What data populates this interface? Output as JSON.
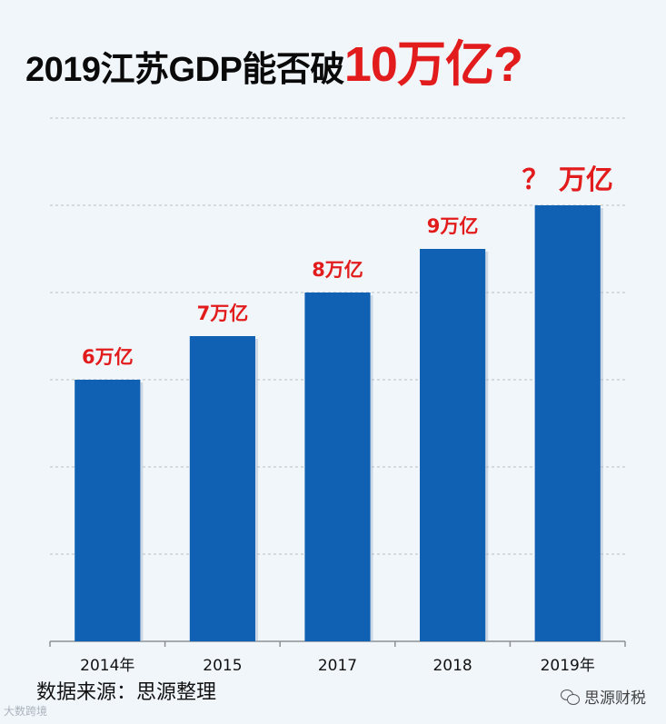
{
  "title": {
    "main": "2019江苏GDP能否破",
    "accent": "10万亿?"
  },
  "source": "数据来源：思源整理",
  "watermark_left": "大数跨境",
  "watermark_right": "思源财税",
  "colors": {
    "bar": "#1060b4",
    "label": "#e21c1c",
    "grid": "#b8bec6",
    "axis": "#8c9096"
  },
  "chart_data": {
    "type": "bar",
    "categories": [
      "2014年",
      "2015",
      "2017",
      "2018",
      "2019年"
    ],
    "values": [
      6,
      7,
      8,
      9,
      10
    ],
    "data_labels": [
      "6万亿",
      "7万亿",
      "8万亿",
      "9万亿",
      "？ 万亿"
    ],
    "ylim": [
      0,
      12
    ],
    "grid": true,
    "title": "2019江苏GDP能否破10万亿?",
    "xlabel": "",
    "ylabel": ""
  }
}
